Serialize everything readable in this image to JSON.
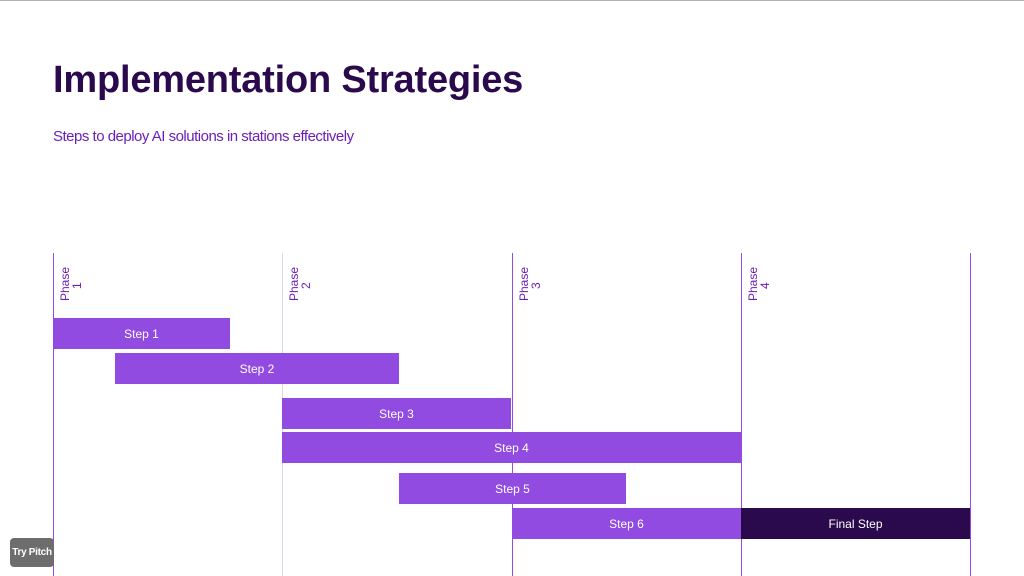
{
  "slide": {
    "title": "Implementation Strategies",
    "subtitle": "Steps to deploy AI solutions in stations effectively"
  },
  "timeline": {
    "phases": [
      {
        "word": "Phase",
        "number": "1"
      },
      {
        "word": "Phase",
        "number": "2"
      },
      {
        "word": "Phase",
        "number": "3"
      },
      {
        "word": "Phase",
        "number": "4"
      }
    ],
    "tasks": [
      {
        "label": "Step 1",
        "start": 0.0,
        "end": 0.77,
        "color": "#914be0"
      },
      {
        "label": "Step 2",
        "start": 0.27,
        "end": 1.51,
        "color": "#914be0"
      },
      {
        "label": "Step 3",
        "start": 1.0,
        "end": 2.0,
        "color": "#914be0"
      },
      {
        "label": "Step 4",
        "start": 1.0,
        "end": 3.0,
        "color": "#914be0"
      },
      {
        "label": "Step 5",
        "start": 1.51,
        "end": 2.5,
        "color": "#914be0"
      },
      {
        "label": "Step 6",
        "start": 2.0,
        "end": 3.0,
        "color": "#914be0"
      },
      {
        "label": "Final Step",
        "start": 3.0,
        "end": 4.0,
        "color": "#2a0a4d"
      }
    ]
  },
  "colors": {
    "title": "#2a0a4d",
    "accent": "#6b1fb8",
    "bar": "#914be0",
    "final_bar": "#2a0a4d",
    "phase_line_first": "#914be0",
    "phase_line": "#ddd4ea"
  },
  "badge": {
    "label": "Try Pitch"
  }
}
